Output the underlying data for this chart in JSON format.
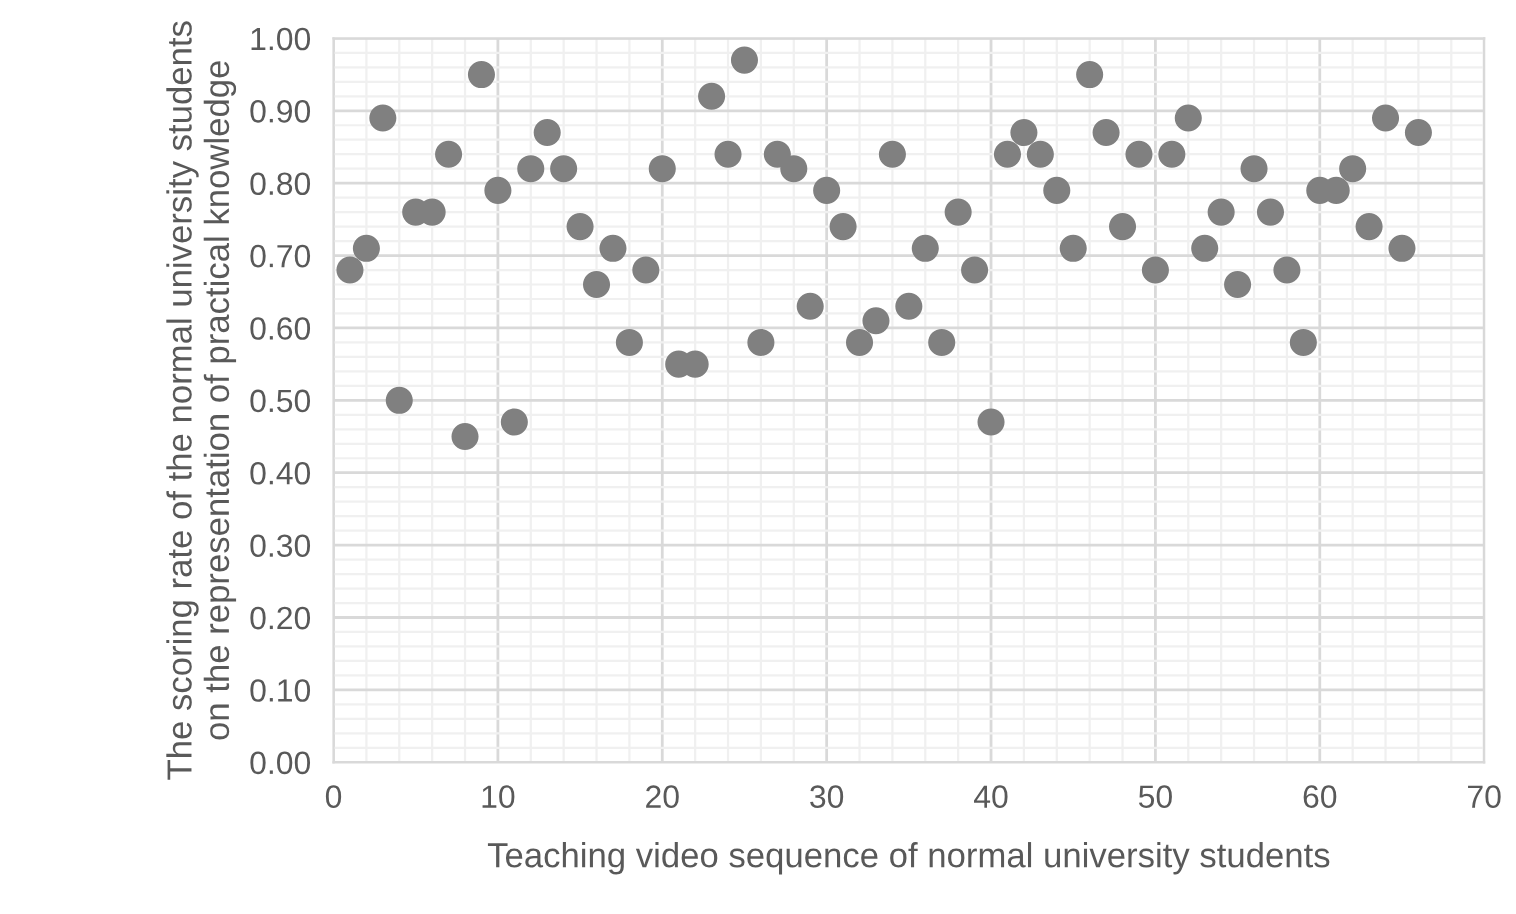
{
  "chart_data": {
    "type": "scatter",
    "xlabel": "Teaching video sequence of normal university students",
    "ylabel": "The scoring rate of the normal university students on the representation of practical knowledge",
    "x": [
      1,
      2,
      3,
      4,
      5,
      6,
      7,
      8,
      9,
      10,
      11,
      12,
      13,
      14,
      15,
      16,
      17,
      18,
      19,
      20,
      21,
      22,
      23,
      24,
      25,
      26,
      27,
      28,
      29,
      30,
      31,
      32,
      33,
      34,
      35,
      36,
      37,
      38,
      39,
      40,
      41,
      42,
      43,
      44,
      45,
      46,
      47,
      48,
      49,
      50,
      51,
      52,
      53,
      54,
      55,
      56,
      57,
      58,
      59,
      60,
      61,
      62,
      63,
      64,
      65,
      66
    ],
    "series": [
      {
        "color": "#808080",
        "values": [
          0.68,
          0.71,
          0.89,
          0.5,
          0.76,
          0.76,
          0.84,
          0.45,
          0.95,
          0.79,
          0.47,
          0.82,
          0.87,
          0.82,
          0.74,
          0.66,
          0.71,
          0.58,
          0.68,
          0.82,
          0.55,
          0.55,
          0.92,
          0.84,
          0.97,
          0.58,
          0.84,
          0.82,
          0.63,
          0.79,
          0.74,
          0.58,
          0.61,
          0.84,
          0.63,
          0.71,
          0.58,
          0.76,
          0.68,
          0.47,
          0.84,
          0.87,
          0.84,
          0.79,
          0.71,
          0.95,
          0.87,
          0.74,
          0.84,
          0.68,
          0.84,
          0.89,
          0.71,
          0.76,
          0.66,
          0.82,
          0.76,
          0.68,
          0.58,
          0.79,
          0.79,
          0.82,
          0.74,
          0.89,
          0.71,
          0.87
        ]
      }
    ],
    "xlim": [
      0,
      70
    ],
    "xticks": [
      0,
      10,
      20,
      30,
      40,
      50,
      60,
      70
    ],
    "ylim": [
      0,
      1
    ],
    "yticks": [
      {
        "value": 0,
        "label": "0.00"
      },
      {
        "value": 0.1,
        "label": "0.10"
      },
      {
        "value": 0.2,
        "label": "0.20"
      },
      {
        "value": 0.3,
        "label": "0.30"
      },
      {
        "value": 0.4,
        "label": "0.40"
      },
      {
        "value": 0.5,
        "label": "0.50"
      },
      {
        "value": 0.6,
        "label": "0.60"
      },
      {
        "value": 0.7,
        "label": "0.70"
      },
      {
        "value": 0.8,
        "label": "0.80"
      },
      {
        "value": 0.9,
        "label": "0.90"
      },
      {
        "value": 1,
        "label": "1.00"
      }
    ],
    "grid": true,
    "marker": "circle"
  }
}
